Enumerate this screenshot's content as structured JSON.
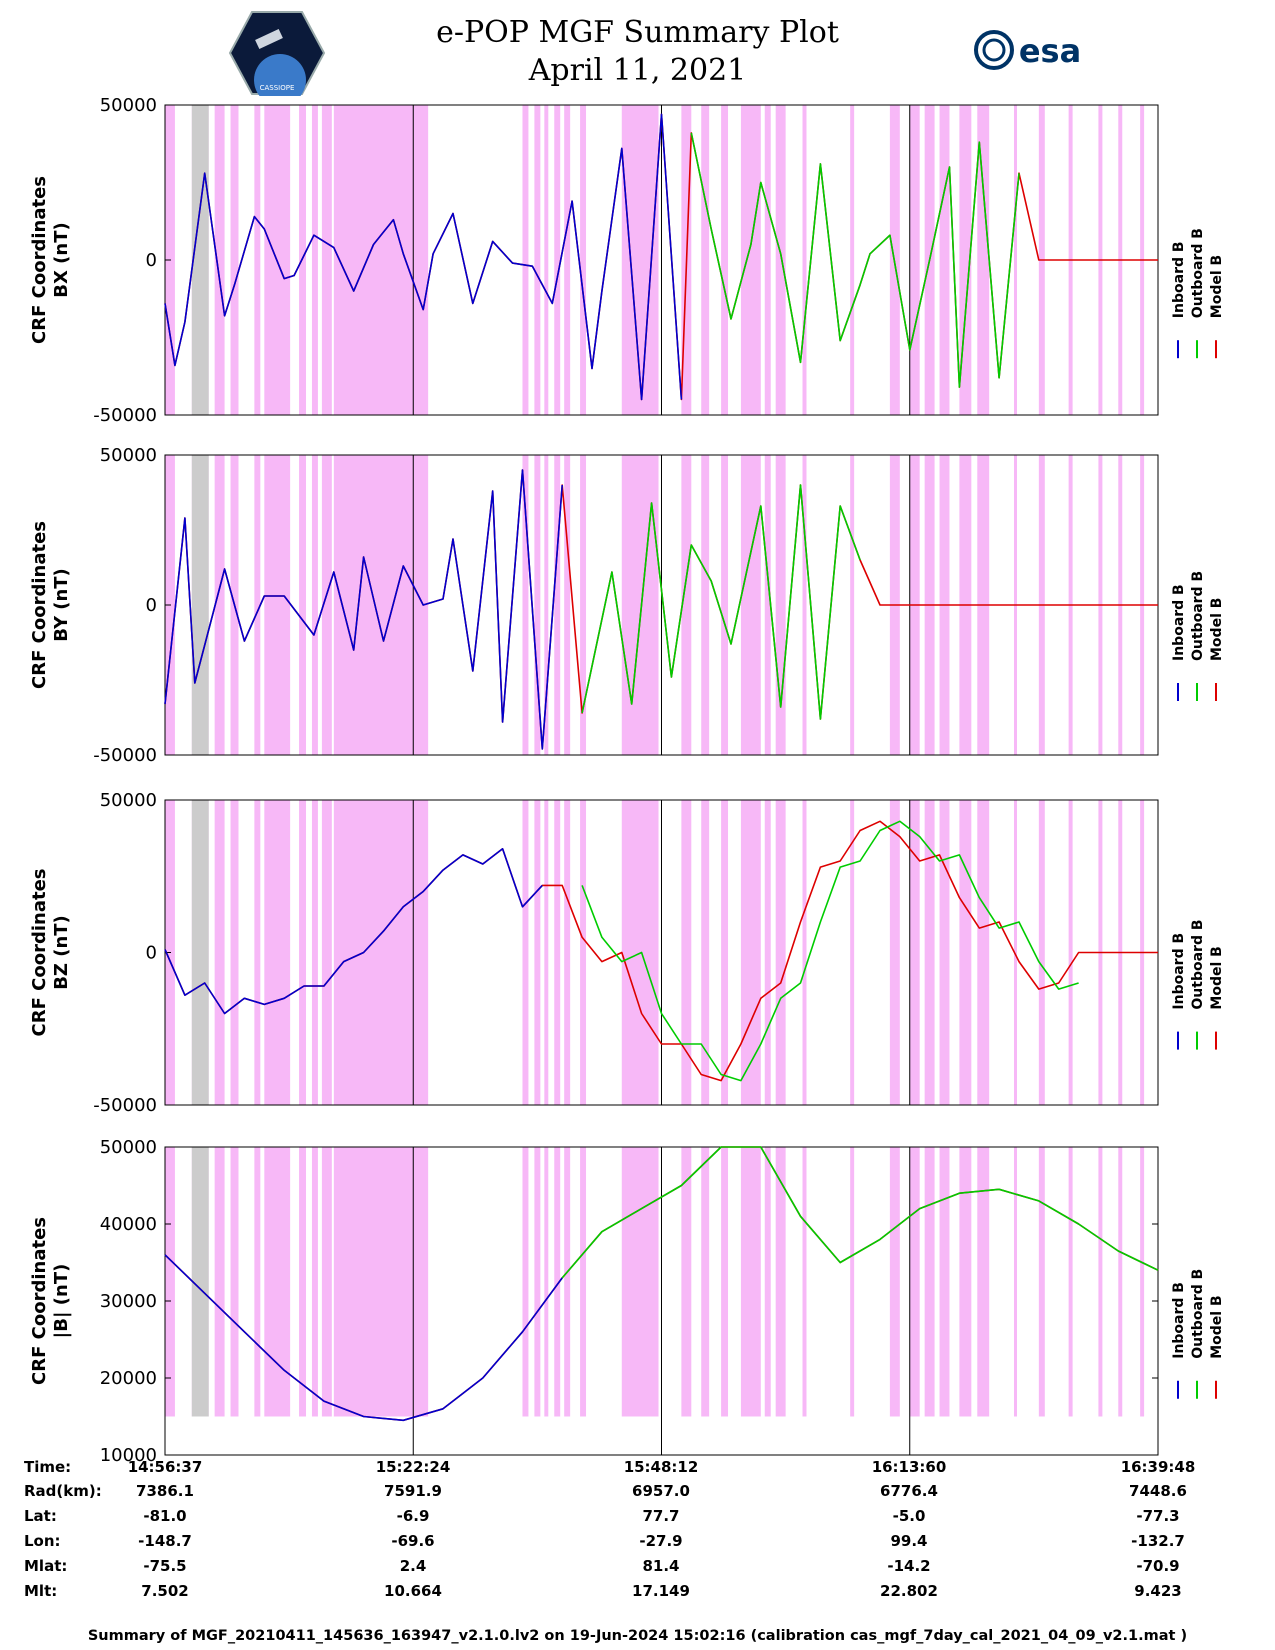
{
  "header": {
    "title_line1": "e-POP MGF Summary Plot",
    "title_line2": "April 11, 2021",
    "left_logo_text": "CASSIOPE",
    "right_logo_text": "esa"
  },
  "colors": {
    "inboard": "#0000cc",
    "outboard": "#00cc00",
    "model": "#dd0000",
    "shade": "#f7b8f7",
    "gray": "#cccccc"
  },
  "legend": {
    "inboard": "Inboard B",
    "outboard": "Outboard B",
    "model": "Model B"
  },
  "shading_ranges_fraction": [
    [
      0.0,
      0.01
    ],
    [
      0.027,
      0.044
    ],
    [
      0.05,
      0.06
    ],
    [
      0.066,
      0.074
    ],
    [
      0.09,
      0.096
    ],
    [
      0.1,
      0.126
    ],
    [
      0.135,
      0.142
    ],
    [
      0.148,
      0.154
    ],
    [
      0.158,
      0.168
    ],
    [
      0.17,
      0.265
    ],
    [
      0.36,
      0.366
    ],
    [
      0.372,
      0.378
    ],
    [
      0.382,
      0.386
    ],
    [
      0.392,
      0.398
    ],
    [
      0.402,
      0.408
    ],
    [
      0.418,
      0.424
    ],
    [
      0.46,
      0.497
    ],
    [
      0.52,
      0.53
    ],
    [
      0.54,
      0.548
    ],
    [
      0.56,
      0.567
    ],
    [
      0.58,
      0.6
    ],
    [
      0.604,
      0.61
    ],
    [
      0.615,
      0.625
    ],
    [
      0.642,
      0.646
    ],
    [
      0.69,
      0.694
    ],
    [
      0.73,
      0.74
    ],
    [
      0.75,
      0.76
    ],
    [
      0.765,
      0.775
    ],
    [
      0.78,
      0.79
    ],
    [
      0.8,
      0.812
    ],
    [
      0.818,
      0.83
    ],
    [
      0.855,
      0.858
    ],
    [
      0.88,
      0.886
    ],
    [
      0.91,
      0.914
    ],
    [
      0.94,
      0.944
    ],
    [
      0.96,
      0.964
    ],
    [
      0.982,
      0.986
    ]
  ],
  "gray_range_fraction": [
    0.027,
    0.044
  ],
  "chart_data": [
    {
      "type": "line",
      "ylabel_line1": "CRF Coordinates",
      "ylabel_line2": "BX (nT)",
      "ylim": [
        -50000,
        50000
      ],
      "yticks": [
        "50000",
        "0",
        "-50000"
      ],
      "ytick_values": [
        50000,
        0,
        -50000
      ],
      "x": [
        0.0,
        0.01,
        0.02,
        0.04,
        0.06,
        0.07,
        0.09,
        0.1,
        0.12,
        0.13,
        0.15,
        0.17,
        0.19,
        0.21,
        0.23,
        0.24,
        0.26,
        0.27,
        0.29,
        0.31,
        0.33,
        0.35,
        0.37,
        0.39,
        0.41,
        0.43,
        0.44,
        0.46,
        0.48,
        0.5,
        0.52,
        0.53,
        0.55,
        0.57,
        0.59,
        0.6,
        0.62,
        0.64,
        0.66,
        0.68,
        0.7,
        0.71,
        0.73,
        0.75,
        0.77,
        0.79,
        0.8,
        0.82,
        0.84,
        0.86,
        0.88,
        0.9,
        0.92,
        0.94,
        0.95,
        0.97,
        0.99,
        1.0
      ],
      "inboard": [
        -14000,
        -34000,
        -20000,
        28000,
        -18000,
        -8000,
        14000,
        10000,
        -6000,
        -5000,
        8000,
        4000,
        -10000,
        5000,
        13000,
        2000,
        -16000,
        2000,
        15000,
        -14000,
        6000,
        -1000,
        -2000,
        -14000,
        19000,
        -35000,
        -10000,
        36000,
        -45000,
        47000,
        -45000,
        0,
        0,
        0,
        0,
        0,
        0,
        0,
        0,
        0,
        0,
        0,
        0,
        0,
        0,
        0,
        0,
        0,
        0,
        0,
        0,
        0,
        0,
        0,
        0,
        0,
        0,
        0
      ],
      "outboard": [
        0,
        0,
        0,
        0,
        0,
        0,
        0,
        0,
        0,
        0,
        0,
        0,
        0,
        0,
        0,
        0,
        0,
        0,
        0,
        0,
        0,
        0,
        0,
        0,
        0,
        0,
        0,
        0,
        0,
        0,
        0,
        41000,
        10000,
        -19000,
        5000,
        25000,
        2000,
        -33000,
        31000,
        -26000,
        -8000,
        2000,
        8000,
        -29000,
        0,
        30000,
        -41000,
        38000,
        -38000,
        28000,
        0,
        0,
        0,
        0,
        0,
        0,
        0,
        0
      ],
      "model": [
        -14000,
        -34000,
        -20000,
        28000,
        -18000,
        -8000,
        14000,
        10000,
        -6000,
        -5000,
        8000,
        4000,
        -10000,
        5000,
        13000,
        2000,
        -16000,
        2000,
        15000,
        -14000,
        6000,
        -1000,
        -2000,
        -14000,
        19000,
        -35000,
        -10000,
        36000,
        -45000,
        47000,
        -45000,
        41000,
        10000,
        -19000,
        5000,
        25000,
        2000,
        -33000,
        31000,
        -26000,
        -8000,
        2000,
        8000,
        -29000,
        0,
        30000,
        -41000,
        38000,
        -38000,
        28000,
        0,
        0,
        0,
        0,
        0,
        0,
        0,
        0
      ]
    },
    {
      "type": "line",
      "ylabel_line1": "CRF Coordinates",
      "ylabel_line2": "BY (nT)",
      "ylim": [
        -50000,
        50000
      ],
      "yticks": [
        "50000",
        "0",
        "-50000"
      ],
      "ytick_values": [
        50000,
        0,
        -50000
      ],
      "x": [
        0.0,
        0.02,
        0.03,
        0.06,
        0.08,
        0.1,
        0.12,
        0.15,
        0.17,
        0.19,
        0.2,
        0.22,
        0.24,
        0.26,
        0.28,
        0.29,
        0.31,
        0.33,
        0.34,
        0.36,
        0.38,
        0.4,
        0.42,
        0.45,
        0.47,
        0.49,
        0.51,
        0.53,
        0.55,
        0.57,
        0.6,
        0.62,
        0.64,
        0.66,
        0.68,
        0.7,
        0.72,
        0.74,
        0.76,
        0.78,
        0.8,
        0.82,
        0.84,
        0.86,
        0.88,
        0.9,
        0.92,
        0.94,
        0.96,
        0.98,
        1.0
      ],
      "inboard": [
        -33000,
        29000,
        -26000,
        12000,
        -12000,
        3000,
        3000,
        -10000,
        11000,
        -15000,
        16000,
        -12000,
        13000,
        0,
        2000,
        22000,
        -22000,
        38000,
        -39000,
        45000,
        -48000,
        40000,
        0,
        0,
        0,
        0,
        0,
        0,
        0,
        0,
        0,
        0,
        0,
        0,
        0,
        0,
        0,
        0,
        0,
        0,
        0,
        0,
        0,
        0,
        0,
        0,
        0,
        0,
        0,
        0,
        0
      ],
      "outboard": [
        0,
        0,
        0,
        0,
        0,
        0,
        0,
        0,
        0,
        0,
        0,
        0,
        0,
        0,
        0,
        0,
        0,
        0,
        0,
        0,
        0,
        0,
        -36000,
        11000,
        -33000,
        34000,
        -24000,
        20000,
        8000,
        -13000,
        33000,
        -34000,
        40000,
        -38000,
        33000,
        15000,
        0,
        0,
        0,
        0,
        0,
        0,
        0,
        0,
        0,
        0,
        0,
        0,
        0,
        0,
        0
      ],
      "model": [
        -33000,
        29000,
        -26000,
        12000,
        -12000,
        3000,
        3000,
        -10000,
        11000,
        -15000,
        16000,
        -12000,
        13000,
        0,
        2000,
        22000,
        -22000,
        38000,
        -39000,
        45000,
        -48000,
        40000,
        -36000,
        11000,
        -33000,
        34000,
        -24000,
        20000,
        8000,
        -13000,
        33000,
        -34000,
        40000,
        -38000,
        33000,
        15000,
        0,
        0,
        0,
        0,
        0,
        0,
        0,
        0,
        0,
        0,
        0,
        0,
        0,
        0,
        0
      ]
    },
    {
      "type": "line",
      "ylabel_line1": "CRF Coordinates",
      "ylabel_line2": "BZ (nT)",
      "ylim": [
        -50000,
        50000
      ],
      "yticks": [
        "50000",
        "0",
        "-50000"
      ],
      "ytick_values": [
        50000,
        0,
        -50000
      ],
      "x": [
        0.0,
        0.02,
        0.04,
        0.06,
        0.08,
        0.1,
        0.12,
        0.14,
        0.16,
        0.18,
        0.2,
        0.22,
        0.24,
        0.26,
        0.28,
        0.3,
        0.32,
        0.34,
        0.36,
        0.38,
        0.4,
        0.42,
        0.44,
        0.46,
        0.48,
        0.5,
        0.52,
        0.54,
        0.56,
        0.58,
        0.6,
        0.62,
        0.64,
        0.66,
        0.68,
        0.7,
        0.72,
        0.74,
        0.76,
        0.78,
        0.8,
        0.82,
        0.84,
        0.86,
        0.88,
        0.9,
        0.92,
        0.94,
        0.96,
        0.98,
        1.0
      ],
      "inboard": [
        1000,
        -14000,
        -10000,
        -20000,
        -15000,
        -17000,
        -15000,
        -11000,
        -11000,
        -3000,
        0,
        7000,
        15000,
        20000,
        27000,
        32000,
        29000,
        34000,
        15000,
        22000,
        0,
        0,
        0,
        0,
        0,
        0,
        0,
        0,
        0,
        0,
        0,
        0,
        0,
        0,
        0,
        0,
        0,
        0,
        0,
        0,
        0,
        0,
        0,
        0,
        0,
        0,
        0,
        0,
        0,
        0,
        0
      ],
      "outboard": [
        0,
        0,
        0,
        0,
        0,
        0,
        0,
        0,
        0,
        0,
        0,
        0,
        0,
        0,
        0,
        0,
        0,
        0,
        0,
        0,
        0,
        22000,
        5000,
        -3000,
        0,
        -20000,
        -30000,
        -30000,
        -40000,
        -42000,
        -30000,
        -15000,
        -10000,
        10000,
        28000,
        30000,
        40000,
        43000,
        38000,
        30000,
        32000,
        18000,
        8000,
        10000,
        -3000,
        -12000,
        -10000,
        0,
        0,
        0,
        0
      ],
      "model": [
        1000,
        -14000,
        -10000,
        -20000,
        -15000,
        -17000,
        -15000,
        -11000,
        -11000,
        -3000,
        0,
        7000,
        15000,
        20000,
        27000,
        32000,
        29000,
        34000,
        15000,
        22000,
        22000,
        5000,
        -3000,
        0,
        -20000,
        -30000,
        -30000,
        -40000,
        -42000,
        -30000,
        -15000,
        -10000,
        10000,
        28000,
        30000,
        40000,
        43000,
        38000,
        30000,
        32000,
        18000,
        8000,
        10000,
        -3000,
        -12000,
        -10000,
        0,
        0,
        0,
        0,
        0
      ]
    },
    {
      "type": "line",
      "ylabel_line1": "CRF Coordinates",
      "ylabel_line2": "|B| (nT)",
      "ylim": [
        10000,
        50000
      ],
      "yticks": [
        "50000",
        "40000",
        "30000",
        "20000",
        "10000"
      ],
      "ytick_values": [
        50000,
        40000,
        30000,
        20000,
        10000
      ],
      "x": [
        0.0,
        0.04,
        0.08,
        0.12,
        0.16,
        0.2,
        0.24,
        0.28,
        0.32,
        0.36,
        0.4,
        0.44,
        0.48,
        0.52,
        0.56,
        0.6,
        0.64,
        0.68,
        0.72,
        0.76,
        0.8,
        0.84,
        0.88,
        0.92,
        0.96,
        1.0
      ],
      "inboard": [
        36000,
        31000,
        26000,
        21000,
        17000,
        15000,
        14500,
        16000,
        20000,
        26000,
        33000,
        0,
        0,
        0,
        0,
        0,
        0,
        0,
        0,
        0,
        0,
        0,
        0,
        0,
        0,
        0
      ],
      "outboard": [
        0,
        0,
        0,
        0,
        0,
        0,
        0,
        0,
        0,
        0,
        33000,
        39000,
        42000,
        45000,
        50000,
        50000,
        41000,
        35000,
        38000,
        42000,
        44000,
        44500,
        43000,
        40000,
        36500,
        34000
      ],
      "model": [
        36000,
        31000,
        26000,
        21000,
        17000,
        15000,
        14500,
        16000,
        20000,
        26000,
        33000,
        39000,
        42000,
        45000,
        50000,
        50000,
        41000,
        35000,
        38000,
        42000,
        44000,
        44500,
        43000,
        40000,
        36500,
        34000
      ]
    }
  ],
  "info_table": {
    "labels": [
      "Time:",
      "Rad(km):",
      "Lat:",
      "Lon:",
      "Mlat:",
      "Mlt:"
    ],
    "columns": [
      [
        "14:56:37",
        "7386.1",
        "-81.0",
        "-148.7",
        "-75.5",
        "7.502"
      ],
      [
        "15:22:24",
        "7591.9",
        "-6.9",
        "-69.6",
        "2.4",
        "10.664"
      ],
      [
        "15:48:12",
        "6957.0",
        "77.7",
        "-27.9",
        "81.4",
        "17.149"
      ],
      [
        "16:13:60",
        "6776.4",
        "-5.0",
        "99.4",
        "-14.2",
        "22.802"
      ],
      [
        "16:39:48",
        "7448.6",
        "-77.3",
        "-132.7",
        "-70.9",
        "9.423"
      ]
    ]
  },
  "footer": "Summary of MGF_20210411_145636_163947_v2.1.0.lv2 on 19-Jun-2024 15:02:16 (calibration cas_mgf_7day_cal_2021_04_09_v2.1.mat )"
}
